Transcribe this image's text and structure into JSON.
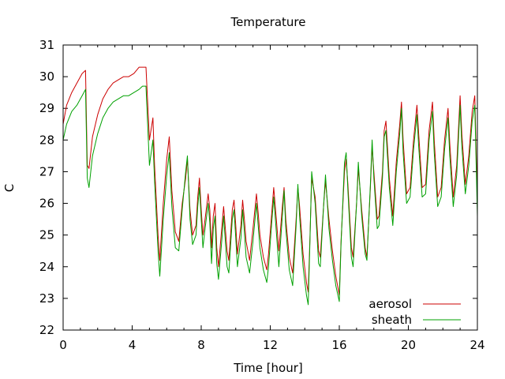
{
  "chart_data": {
    "type": "line",
    "title": "Temperature",
    "xlabel": "Time [hour]",
    "ylabel": "C",
    "xlim": [
      0,
      24
    ],
    "ylim": [
      22,
      31
    ],
    "xticks": [
      0,
      4,
      8,
      12,
      16,
      20,
      24
    ],
    "yticks": [
      22,
      23,
      24,
      25,
      26,
      27,
      28,
      29,
      30,
      31
    ],
    "legend": "bottom-right",
    "grid": false,
    "series": [
      {
        "name": "aerosol",
        "color": "#cc0000",
        "points": [
          [
            0,
            28.5
          ],
          [
            0.2,
            29.1
          ],
          [
            0.5,
            29.5
          ],
          [
            0.8,
            29.8
          ],
          [
            1.1,
            30.1
          ],
          [
            1.3,
            30.2
          ],
          [
            1.4,
            27.2
          ],
          [
            1.5,
            27.1
          ],
          [
            1.7,
            28.1
          ],
          [
            2.0,
            28.8
          ],
          [
            2.3,
            29.3
          ],
          [
            2.6,
            29.6
          ],
          [
            2.9,
            29.8
          ],
          [
            3.2,
            29.9
          ],
          [
            3.5,
            30.0
          ],
          [
            3.8,
            30.0
          ],
          [
            4.1,
            30.1
          ],
          [
            4.4,
            30.3
          ],
          [
            4.6,
            30.3
          ],
          [
            4.8,
            30.3
          ],
          [
            5.0,
            28.0
          ],
          [
            5.2,
            28.7
          ],
          [
            5.3,
            27.2
          ],
          [
            5.5,
            25.0
          ],
          [
            5.6,
            24.2
          ],
          [
            5.8,
            26.0
          ],
          [
            6.0,
            27.4
          ],
          [
            6.15,
            28.1
          ],
          [
            6.3,
            26.4
          ],
          [
            6.5,
            25.1
          ],
          [
            6.7,
            24.8
          ],
          [
            6.9,
            26.0
          ],
          [
            7.1,
            26.8
          ],
          [
            7.2,
            27.4
          ],
          [
            7.35,
            25.8
          ],
          [
            7.5,
            25.0
          ],
          [
            7.7,
            25.3
          ],
          [
            7.8,
            26.2
          ],
          [
            7.9,
            26.8
          ],
          [
            8.0,
            25.8
          ],
          [
            8.1,
            25.0
          ],
          [
            8.2,
            25.4
          ],
          [
            8.4,
            26.3
          ],
          [
            8.5,
            25.8
          ],
          [
            8.6,
            24.6
          ],
          [
            8.7,
            25.6
          ],
          [
            8.8,
            26.0
          ],
          [
            8.9,
            24.6
          ],
          [
            9.0,
            24.0
          ],
          [
            9.2,
            25.3
          ],
          [
            9.3,
            25.9
          ],
          [
            9.5,
            24.5
          ],
          [
            9.6,
            24.2
          ],
          [
            9.8,
            25.8
          ],
          [
            9.9,
            26.1
          ],
          [
            10.0,
            25.3
          ],
          [
            10.1,
            24.4
          ],
          [
            10.3,
            25.3
          ],
          [
            10.4,
            26.1
          ],
          [
            10.5,
            25.5
          ],
          [
            10.6,
            24.8
          ],
          [
            10.8,
            24.2
          ],
          [
            11.0,
            25.2
          ],
          [
            11.2,
            26.3
          ],
          [
            11.3,
            25.7
          ],
          [
            11.4,
            25.0
          ],
          [
            11.6,
            24.3
          ],
          [
            11.8,
            23.9
          ],
          [
            11.9,
            24.4
          ],
          [
            12.1,
            25.8
          ],
          [
            12.2,
            26.5
          ],
          [
            12.35,
            25.5
          ],
          [
            12.5,
            24.5
          ],
          [
            12.7,
            25.9
          ],
          [
            12.8,
            26.5
          ],
          [
            12.9,
            25.5
          ],
          [
            13.1,
            24.3
          ],
          [
            13.3,
            23.8
          ],
          [
            13.5,
            25.5
          ],
          [
            13.6,
            26.5
          ],
          [
            13.7,
            25.9
          ],
          [
            13.9,
            24.4
          ],
          [
            14.1,
            23.5
          ],
          [
            14.2,
            23.2
          ],
          [
            14.3,
            24.9
          ],
          [
            14.4,
            26.8
          ],
          [
            14.6,
            26.2
          ],
          [
            14.8,
            24.5
          ],
          [
            14.9,
            24.3
          ],
          [
            15.1,
            26.0
          ],
          [
            15.2,
            26.7
          ],
          [
            15.4,
            25.5
          ],
          [
            15.6,
            24.5
          ],
          [
            15.8,
            23.7
          ],
          [
            16.0,
            23.1
          ],
          [
            16.1,
            24.8
          ],
          [
            16.3,
            27.0
          ],
          [
            16.4,
            27.4
          ],
          [
            16.5,
            26.6
          ],
          [
            16.7,
            24.6
          ],
          [
            16.8,
            24.3
          ],
          [
            17.0,
            26.0
          ],
          [
            17.1,
            27.1
          ],
          [
            17.3,
            25.8
          ],
          [
            17.5,
            24.6
          ],
          [
            17.6,
            24.3
          ],
          [
            17.8,
            26.5
          ],
          [
            17.9,
            27.8
          ],
          [
            18.0,
            27.0
          ],
          [
            18.2,
            25.5
          ],
          [
            18.3,
            25.6
          ],
          [
            18.5,
            27.0
          ],
          [
            18.6,
            28.3
          ],
          [
            18.7,
            28.6
          ],
          [
            18.9,
            26.8
          ],
          [
            19.1,
            25.6
          ],
          [
            19.3,
            27.3
          ],
          [
            19.5,
            28.5
          ],
          [
            19.6,
            29.2
          ],
          [
            19.7,
            28.0
          ],
          [
            19.9,
            26.3
          ],
          [
            20.1,
            26.5
          ],
          [
            20.3,
            28.0
          ],
          [
            20.5,
            29.1
          ],
          [
            20.6,
            28.2
          ],
          [
            20.8,
            26.5
          ],
          [
            21.0,
            26.6
          ],
          [
            21.2,
            28.3
          ],
          [
            21.4,
            29.2
          ],
          [
            21.5,
            28.0
          ],
          [
            21.7,
            26.2
          ],
          [
            21.9,
            26.5
          ],
          [
            22.1,
            28.0
          ],
          [
            22.3,
            29.0
          ],
          [
            22.4,
            27.9
          ],
          [
            22.6,
            26.2
          ],
          [
            22.8,
            27.2
          ],
          [
            23.0,
            29.4
          ],
          [
            23.1,
            28.2
          ],
          [
            23.3,
            26.6
          ],
          [
            23.5,
            27.5
          ],
          [
            23.7,
            28.9
          ],
          [
            23.85,
            29.4
          ],
          [
            24.0,
            26.1
          ]
        ]
      },
      {
        "name": "sheath",
        "color": "#00a000",
        "points": [
          [
            0,
            28.0
          ],
          [
            0.2,
            28.5
          ],
          [
            0.5,
            28.9
          ],
          [
            0.8,
            29.1
          ],
          [
            1.1,
            29.4
          ],
          [
            1.3,
            29.6
          ],
          [
            1.4,
            26.8
          ],
          [
            1.5,
            26.5
          ],
          [
            1.7,
            27.5
          ],
          [
            2.0,
            28.2
          ],
          [
            2.3,
            28.7
          ],
          [
            2.6,
            29.0
          ],
          [
            2.9,
            29.2
          ],
          [
            3.2,
            29.3
          ],
          [
            3.5,
            29.4
          ],
          [
            3.8,
            29.4
          ],
          [
            4.1,
            29.5
          ],
          [
            4.4,
            29.6
          ],
          [
            4.6,
            29.7
          ],
          [
            4.8,
            29.7
          ],
          [
            5.0,
            27.2
          ],
          [
            5.2,
            28.0
          ],
          [
            5.3,
            26.7
          ],
          [
            5.5,
            24.5
          ],
          [
            5.6,
            23.7
          ],
          [
            5.8,
            25.5
          ],
          [
            6.0,
            26.9
          ],
          [
            6.15,
            27.6
          ],
          [
            6.3,
            25.9
          ],
          [
            6.5,
            24.6
          ],
          [
            6.7,
            24.5
          ],
          [
            6.9,
            25.8
          ],
          [
            7.1,
            27.0
          ],
          [
            7.2,
            27.5
          ],
          [
            7.35,
            25.5
          ],
          [
            7.5,
            24.7
          ],
          [
            7.7,
            25.0
          ],
          [
            7.8,
            25.9
          ],
          [
            7.9,
            26.5
          ],
          [
            8.0,
            25.5
          ],
          [
            8.1,
            24.6
          ],
          [
            8.2,
            25.1
          ],
          [
            8.4,
            26.0
          ],
          [
            8.5,
            25.4
          ],
          [
            8.6,
            24.1
          ],
          [
            8.7,
            25.2
          ],
          [
            8.8,
            25.6
          ],
          [
            8.9,
            24.1
          ],
          [
            9.0,
            23.6
          ],
          [
            9.2,
            24.9
          ],
          [
            9.3,
            25.6
          ],
          [
            9.5,
            24.0
          ],
          [
            9.6,
            23.8
          ],
          [
            9.8,
            25.5
          ],
          [
            9.9,
            25.8
          ],
          [
            10.0,
            24.9
          ],
          [
            10.1,
            24.0
          ],
          [
            10.3,
            24.9
          ],
          [
            10.4,
            25.8
          ],
          [
            10.5,
            25.1
          ],
          [
            10.6,
            24.3
          ],
          [
            10.8,
            23.8
          ],
          [
            11.0,
            24.8
          ],
          [
            11.2,
            26.0
          ],
          [
            11.3,
            25.3
          ],
          [
            11.4,
            24.6
          ],
          [
            11.6,
            23.9
          ],
          [
            11.8,
            23.5
          ],
          [
            11.9,
            24.0
          ],
          [
            12.1,
            25.5
          ],
          [
            12.2,
            26.2
          ],
          [
            12.35,
            25.1
          ],
          [
            12.5,
            24.0
          ],
          [
            12.7,
            25.6
          ],
          [
            12.8,
            26.4
          ],
          [
            12.9,
            25.2
          ],
          [
            13.1,
            23.9
          ],
          [
            13.3,
            23.4
          ],
          [
            13.5,
            25.3
          ],
          [
            13.6,
            26.6
          ],
          [
            13.7,
            25.6
          ],
          [
            13.9,
            24.0
          ],
          [
            14.1,
            23.1
          ],
          [
            14.2,
            22.8
          ],
          [
            14.3,
            24.8
          ],
          [
            14.4,
            27.0
          ],
          [
            14.6,
            26.0
          ],
          [
            14.8,
            24.1
          ],
          [
            14.9,
            24.0
          ],
          [
            15.1,
            26.0
          ],
          [
            15.2,
            26.9
          ],
          [
            15.4,
            25.2
          ],
          [
            15.6,
            24.2
          ],
          [
            15.8,
            23.4
          ],
          [
            16.0,
            22.9
          ],
          [
            16.1,
            24.7
          ],
          [
            16.3,
            27.3
          ],
          [
            16.4,
            27.6
          ],
          [
            16.5,
            26.4
          ],
          [
            16.7,
            24.3
          ],
          [
            16.8,
            24.0
          ],
          [
            17.0,
            26.0
          ],
          [
            17.1,
            27.3
          ],
          [
            17.3,
            25.6
          ],
          [
            17.5,
            24.4
          ],
          [
            17.6,
            24.2
          ],
          [
            17.8,
            26.6
          ],
          [
            17.9,
            28.0
          ],
          [
            18.0,
            26.8
          ],
          [
            18.2,
            25.2
          ],
          [
            18.3,
            25.3
          ],
          [
            18.5,
            26.8
          ],
          [
            18.6,
            28.1
          ],
          [
            18.7,
            28.3
          ],
          [
            18.9,
            26.5
          ],
          [
            19.1,
            25.3
          ],
          [
            19.3,
            27.0
          ],
          [
            19.5,
            28.2
          ],
          [
            19.6,
            29.0
          ],
          [
            19.7,
            27.6
          ],
          [
            19.9,
            26.0
          ],
          [
            20.1,
            26.2
          ],
          [
            20.3,
            27.7
          ],
          [
            20.5,
            28.8
          ],
          [
            20.6,
            27.8
          ],
          [
            20.8,
            26.2
          ],
          [
            21.0,
            26.3
          ],
          [
            21.2,
            28.0
          ],
          [
            21.4,
            28.9
          ],
          [
            21.5,
            27.6
          ],
          [
            21.7,
            25.9
          ],
          [
            21.9,
            26.2
          ],
          [
            22.1,
            27.7
          ],
          [
            22.3,
            28.7
          ],
          [
            22.4,
            27.5
          ],
          [
            22.6,
            25.9
          ],
          [
            22.8,
            26.9
          ],
          [
            23.0,
            29.1
          ],
          [
            23.1,
            27.8
          ],
          [
            23.3,
            26.3
          ],
          [
            23.5,
            27.2
          ],
          [
            23.7,
            28.6
          ],
          [
            23.85,
            29.1
          ],
          [
            24.0,
            25.6
          ]
        ]
      }
    ]
  }
}
